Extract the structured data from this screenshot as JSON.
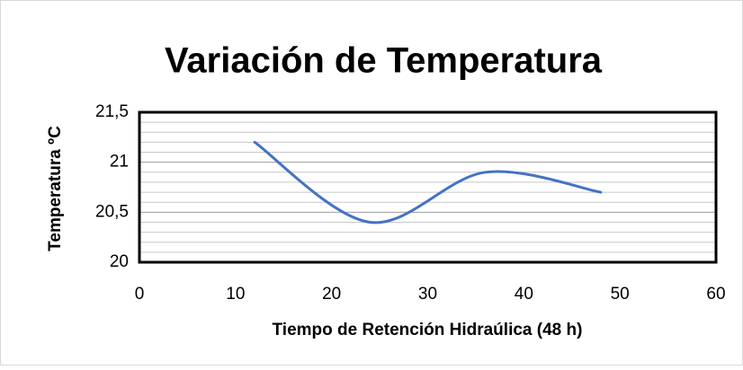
{
  "chart_data": {
    "type": "line",
    "smooth": true,
    "title": "Variación de Temperatura",
    "x_label": "Tiempo de Retención Hidraúlica (48 h)",
    "y_label": "Temperatura ºC",
    "x": [
      12,
      24,
      36,
      48
    ],
    "series": [
      {
        "name": "Temperatura",
        "color": "#4472c4",
        "values": [
          21.2,
          20.4,
          20.9,
          20.7
        ]
      }
    ],
    "xlim": [
      0,
      60
    ],
    "xticks": [
      0,
      10,
      20,
      30,
      40,
      50,
      60
    ],
    "ylim": [
      20,
      21.5
    ],
    "yticks": [
      20,
      {
        "value": 20.5,
        "label": "20,5"
      },
      21,
      {
        "value": 21.5,
        "label": "21,5"
      }
    ],
    "y_minor_step": 0.1,
    "grid": true
  }
}
